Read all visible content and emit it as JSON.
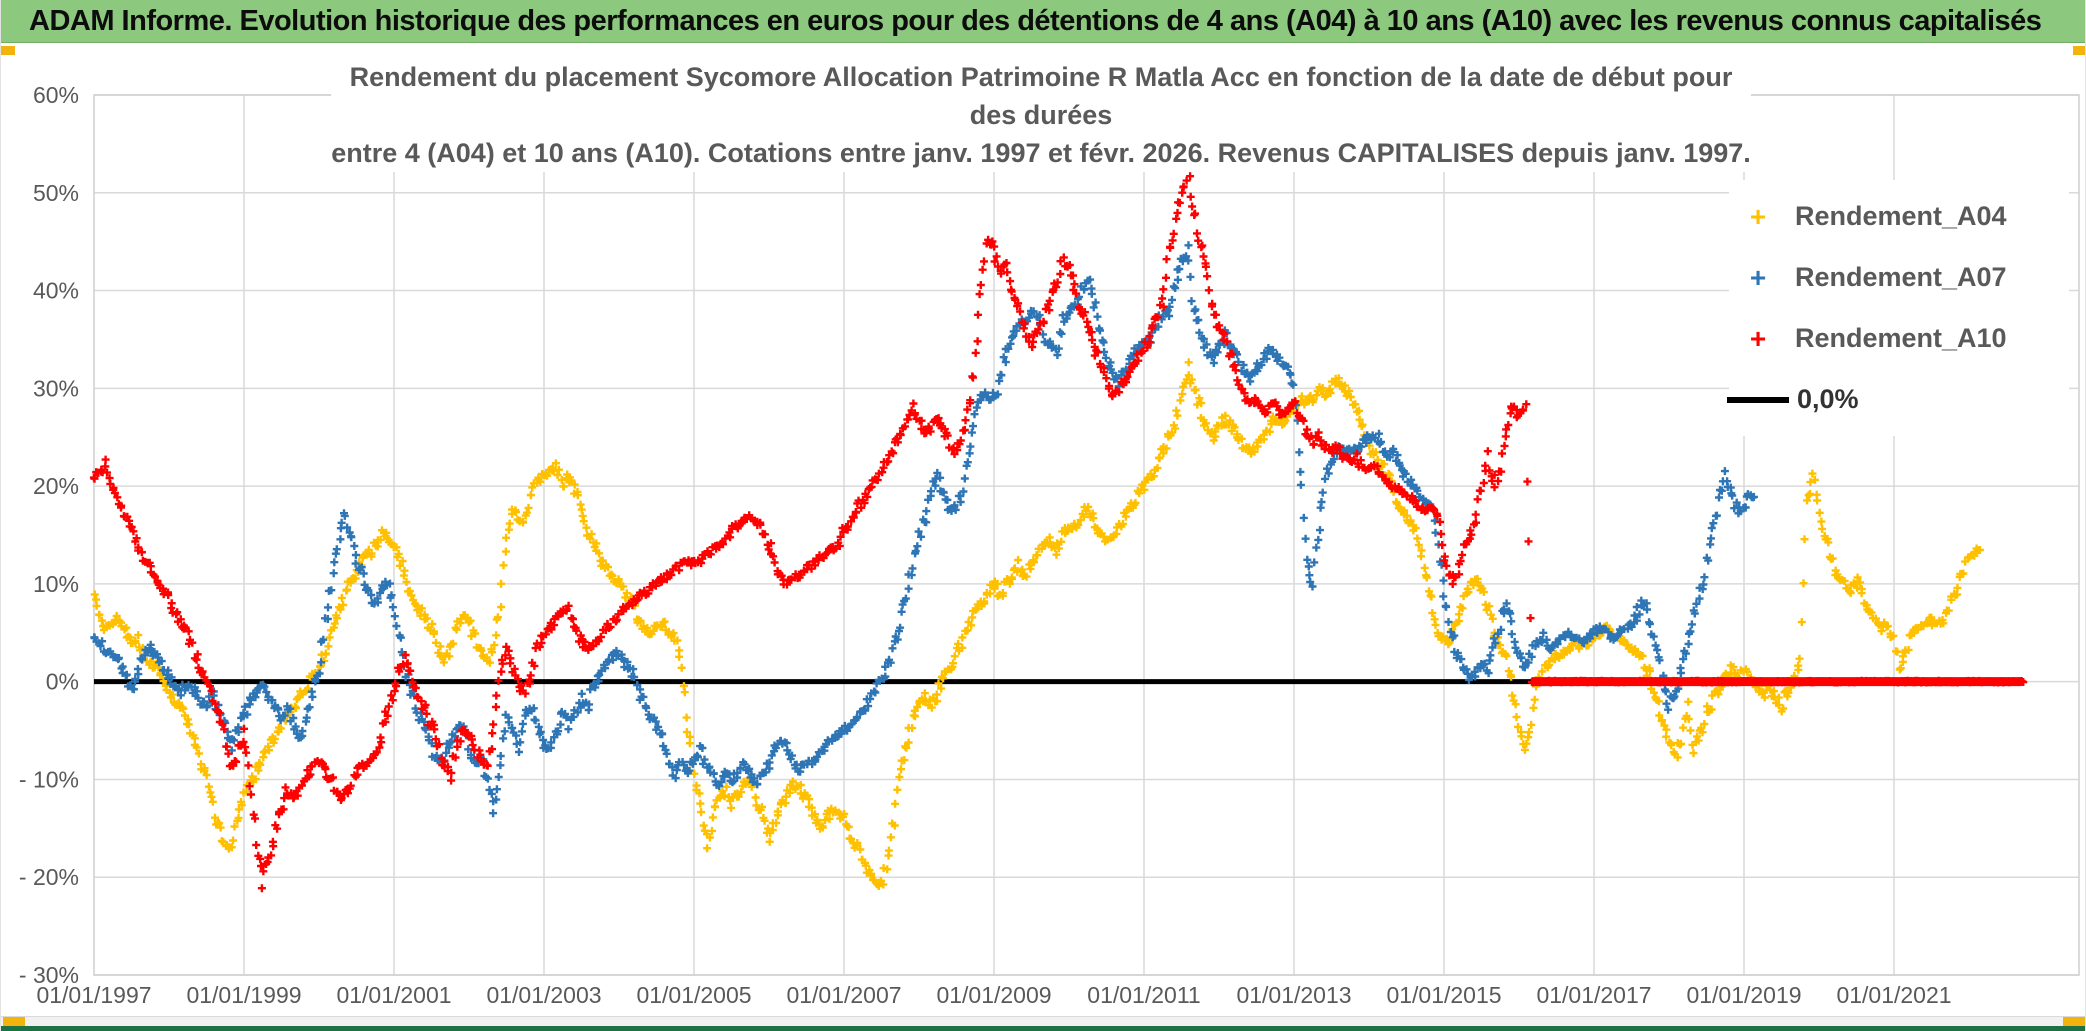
{
  "header": {
    "title": "ADAM Informe. Evolution historique des performances en euros pour des détentions de 4 ans (A04) à 10 ans (A10) avec les revenus connus capitalisés"
  },
  "chart": {
    "subtitle_line1": "Rendement du placement Sycomore Allocation Patrimoine R Matla Acc en fonction de la date de début pour des durées",
    "subtitle_line2": "entre 4 (A04) et 10 ans (A10). Cotations entre janv. 1997 et févr. 2026. Revenus CAPITALISES depuis janv. 1997.",
    "legend": [
      {
        "label": "Rendement_A04",
        "marker": "plus",
        "color": "#FFC000"
      },
      {
        "label": "Rendement_A07",
        "marker": "plus",
        "color": "#2E75B6"
      },
      {
        "label": "Rendement_A10",
        "marker": "plus",
        "color": "#FF0000"
      },
      {
        "label": "0,0%",
        "marker": "line",
        "color": "#000000"
      }
    ],
    "colors": {
      "accent_gold": "#F2B40C",
      "header_green": "#8CC87D",
      "footer_green": "#1E7145",
      "grid": "#D9D9D9",
      "axis_text": "#595959",
      "zero_line": "#000000"
    }
  },
  "chart_data": {
    "type": "scatter",
    "title": "Rendement du placement Sycomore Allocation Patrimoine R Matla Acc en fonction de la date de début pour des durées entre 4 (A04) et 10 ans (A10). Cotations entre janv. 1997 et févr. 2026. Revenus CAPITALISES depuis janv. 1997.",
    "xlabel": "",
    "ylabel": "",
    "grid": true,
    "legend_position": "right-top",
    "x_axis": {
      "ticks": [
        "01/01/1997",
        "01/01/1999",
        "01/01/2001",
        "01/01/2003",
        "01/01/2005",
        "01/01/2007",
        "01/01/2009",
        "01/01/2011",
        "01/01/2013",
        "01/01/2015",
        "01/01/2017",
        "01/01/2019",
        "01/01/2021"
      ],
      "start_year": 1997.0,
      "end_year": 2023.5
    },
    "y_axis": {
      "ticks": [
        "60%",
        "50%",
        "40%",
        "30%",
        "20%",
        "10%",
        "0%",
        "- 10%",
        "- 20%",
        "- 30%"
      ],
      "min": -30,
      "max": 60,
      "unit": "%"
    },
    "zero_line": {
      "label": "0,0%",
      "value": 0,
      "x_start_year": 1997.0,
      "x_end_year": 2022.7
    },
    "series": [
      {
        "name": "Rendement_A04",
        "color": "#FFC000",
        "start": "1997-01",
        "step_months": 1,
        "values": [
          8.5,
          7,
          5.5,
          6,
          6.5,
          5,
          4,
          4.5,
          3,
          2,
          1.5,
          0.5,
          -1,
          -2,
          -3,
          -4.5,
          -6,
          -8,
          -10,
          -13,
          -15,
          -16.5,
          -17,
          -14,
          -12,
          -10.5,
          -9,
          -7.5,
          -6.5,
          -5.5,
          -4.5,
          -3.5,
          -2.5,
          -1.5,
          -0.5,
          0.5,
          1.5,
          3,
          5,
          7,
          8.5,
          10,
          11,
          12.5,
          13,
          14,
          15.5,
          14.5,
          13.5,
          12.5,
          10,
          8.5,
          7.5,
          6.5,
          5.5,
          3.5,
          2,
          3.5,
          5.5,
          7,
          6,
          4.5,
          3,
          2,
          4,
          8,
          15,
          18,
          16,
          17,
          19,
          20.5,
          21,
          21.5,
          22,
          20,
          21,
          19.5,
          17.5,
          15.5,
          14,
          12.5,
          11.5,
          10.5,
          10,
          9,
          8,
          6.5,
          5.5,
          5,
          5.5,
          6,
          5,
          4.5,
          2,
          -5,
          -9,
          -13,
          -16.5,
          -14,
          -12,
          -11,
          -12.5,
          -11.5,
          -10.5,
          -10,
          -12,
          -14,
          -16,
          -14,
          -12.5,
          -11.5,
          -10.5,
          -11,
          -12,
          -13.5,
          -15,
          -14.5,
          -13,
          -13.5,
          -14,
          -15.5,
          -17,
          -18.5,
          -19.5,
          -20.5,
          -21,
          -18,
          -14,
          -9,
          -6.5,
          -4,
          -2.5,
          -1.5,
          -2.5,
          -1,
          0.5,
          1.5,
          3,
          4.5,
          5.5,
          7,
          8,
          9,
          10,
          9,
          10,
          11,
          12,
          11,
          12,
          13,
          14,
          14.5,
          13.5,
          15,
          16,
          15.5,
          17,
          18,
          16.5,
          15,
          14.5,
          15,
          16,
          17,
          18,
          19,
          20,
          21,
          22,
          23.5,
          25,
          26.5,
          29,
          32,
          30,
          28,
          26,
          25,
          26,
          27,
          26,
          25,
          24,
          23.5,
          24,
          25,
          26,
          27,
          26.5,
          27,
          28,
          29,
          28.5,
          29,
          30,
          29.5,
          30,
          31,
          30,
          29,
          28,
          26,
          24,
          23,
          22,
          21,
          19,
          18,
          17,
          16,
          14,
          11.5,
          8,
          5,
          4.5,
          4,
          6,
          8,
          9.5,
          10.5,
          10,
          8,
          5,
          3.5,
          2.5,
          -1,
          -4.5,
          -7.5,
          -4,
          0,
          1.5,
          2,
          2.5,
          3,
          3.5,
          4,
          3.5,
          4,
          4.5,
          5,
          5.5,
          5,
          4.5,
          4,
          3.5,
          3,
          2,
          0.5,
          -2,
          -4,
          -6,
          -7.5,
          -6,
          -2.5,
          -7,
          -5.5,
          -3.5,
          -2,
          -0.5,
          0.5,
          1.5,
          0.5,
          1.5,
          0.5,
          -0.5,
          -1.5,
          -0.5,
          -1.5,
          -2.5,
          -1,
          0.5,
          2,
          18,
          21.5,
          17,
          15,
          12.5,
          11,
          10,
          9.5,
          10.5,
          9,
          7.5,
          6.5,
          5.5,
          6,
          4,
          1,
          3.5,
          5,
          5.5,
          6,
          6.5,
          5.5,
          6.5,
          8,
          9.5,
          11,
          12.5,
          13.5
        ]
      },
      {
        "name": "Rendement_A07",
        "color": "#2E75B6",
        "start": "1997-01",
        "step_months": 1,
        "values": [
          4.5,
          4,
          3,
          2.5,
          2,
          0.5,
          -0.5,
          1,
          2.5,
          3.5,
          2.5,
          1.5,
          0.5,
          -0.5,
          -1,
          0,
          -1,
          -2,
          -2.5,
          -1.5,
          -3,
          -4.5,
          -6.5,
          -5,
          -3.5,
          -2,
          -1,
          -0.5,
          -1.5,
          -2.5,
          -3.5,
          -2.5,
          -4.5,
          -6,
          -3.5,
          -1,
          1.5,
          6,
          10,
          14,
          17.5,
          15,
          12.5,
          10.5,
          9,
          8,
          9.5,
          10.5,
          8,
          4.5,
          1,
          -1.5,
          -3.5,
          -5,
          -6.5,
          -8.5,
          -7.5,
          -6,
          -5,
          -4.5,
          -6.5,
          -8.5,
          -8,
          -10.5,
          -13.5,
          -9,
          -3,
          -4.5,
          -6.5,
          -3.5,
          -2.5,
          -5,
          -6.5,
          -7,
          -5,
          -3,
          -4.5,
          -3.5,
          -1.5,
          -2.5,
          -0.5,
          1,
          2,
          2.5,
          3,
          2,
          1,
          -0.5,
          -2,
          -3.5,
          -4.5,
          -5.5,
          -8,
          -9.5,
          -8.5,
          -9,
          -8,
          -7,
          -8.5,
          -9.5,
          -10.5,
          -9.5,
          -10,
          -9.5,
          -8.5,
          -9.5,
          -10.5,
          -9.5,
          -8.5,
          -7,
          -6,
          -7,
          -8.5,
          -9,
          -8.5,
          -8,
          -7.5,
          -6.5,
          -6,
          -5.5,
          -5,
          -4.5,
          -4,
          -3,
          -2,
          -1,
          0.5,
          1.5,
          3.5,
          6,
          8.5,
          12,
          15,
          17,
          19.5,
          21,
          19,
          17.5,
          18,
          20,
          24,
          27,
          29.5,
          29,
          29,
          31,
          34,
          35.5,
          36.5,
          37,
          38,
          37.5,
          35,
          34.5,
          34,
          37,
          38,
          38.5,
          40,
          41,
          39,
          36,
          33,
          31.5,
          30.5,
          32,
          33.5,
          34,
          34.5,
          35,
          36.5,
          37.5,
          38,
          40.5,
          43,
          44,
          38,
          36,
          34,
          33,
          34,
          35.5,
          34,
          33,
          31.5,
          31,
          32,
          33,
          34,
          33.5,
          32.5,
          32,
          30,
          22,
          12,
          10,
          16,
          21,
          23,
          24,
          23.5,
          24,
          23,
          24.5,
          25,
          25.5,
          24,
          23,
          23.5,
          22,
          21,
          20,
          19,
          18.5,
          18,
          14,
          9,
          5,
          3,
          1.5,
          0.5,
          1,
          2,
          1,
          4,
          6,
          8.5,
          5,
          3,
          1.5,
          3,
          4,
          4.5,
          3.5,
          4,
          4.5,
          5,
          4.5,
          4,
          4.5,
          5,
          5.5,
          5,
          4.5,
          5,
          5.5,
          6,
          7,
          8.5,
          6,
          3,
          0,
          -2.5,
          -1,
          1,
          4,
          7,
          9,
          12,
          15,
          18.5,
          21,
          19,
          17.5,
          18,
          19
        ]
      },
      {
        "name": "Rendement_A10",
        "color": "#FF0000",
        "start": "1997-01",
        "step_months": 1,
        "flat_zero_from": "2016-03",
        "values": [
          21,
          21.5,
          22,
          19.5,
          18.5,
          17,
          15.5,
          14,
          12.5,
          11.5,
          10,
          9.5,
          8.5,
          7,
          6,
          4.5,
          3,
          1.5,
          0,
          -1.5,
          -3,
          -6,
          -9,
          -7,
          -5,
          -10,
          -16,
          -20.5,
          -18,
          -15,
          -13,
          -11,
          -12,
          -11,
          -9.5,
          -8.5,
          -8,
          -9,
          -10,
          -11.5,
          -12,
          -10.5,
          -9.5,
          -8.5,
          -8,
          -7.5,
          -5.5,
          -3,
          -1,
          1.5,
          2.5,
          0.5,
          -1.5,
          -3,
          -4.5,
          -6,
          -8.5,
          -9.5,
          -6.5,
          -5,
          -5.5,
          -7,
          -8,
          -9,
          -4,
          1.5,
          3.5,
          1.5,
          -0.5,
          -1,
          1,
          3.5,
          5,
          5.5,
          6.5,
          7,
          7.5,
          5.5,
          4,
          3.5,
          4,
          4.5,
          5.5,
          6,
          6.5,
          7.5,
          8,
          8.5,
          9,
          9.5,
          10,
          10.5,
          11,
          11.5,
          12,
          12.5,
          12,
          12.5,
          13,
          13.5,
          14,
          14.5,
          15.5,
          16,
          16.5,
          17,
          16.5,
          15.5,
          14,
          12,
          10.5,
          10,
          10.5,
          11,
          11.5,
          12,
          12.5,
          13,
          13.5,
          14,
          15.5,
          16.5,
          17.5,
          18.5,
          19.5,
          20.5,
          21.5,
          22.5,
          24,
          25.5,
          27,
          28,
          27,
          25.5,
          26,
          27,
          26,
          24,
          23.5,
          25,
          28,
          33,
          41,
          45.5,
          44,
          42,
          43,
          40,
          38,
          36,
          34.5,
          36,
          37,
          39,
          41,
          43,
          42,
          40,
          38,
          36.5,
          34,
          33,
          31,
          29.5,
          30,
          31,
          32,
          33,
          34,
          35,
          37,
          39,
          44,
          47,
          50,
          52.5,
          48,
          45,
          42,
          38,
          36,
          35,
          33,
          31,
          29.5,
          28.5,
          29,
          27.5,
          28,
          28.5,
          27.5,
          28,
          28.5,
          27,
          25.5,
          24.5,
          25,
          24,
          23.5,
          24,
          23,
          22.5,
          23,
          22,
          21.5,
          22,
          21,
          20.5,
          20,
          19.5,
          19,
          18.5,
          18,
          17.5,
          18,
          17,
          13,
          11,
          10,
          13,
          15,
          16,
          20,
          23,
          20,
          22,
          26,
          28,
          27,
          28,
          0,
          0,
          0,
          0,
          0,
          0,
          0,
          0,
          0,
          0,
          0,
          0,
          0,
          0,
          0,
          0,
          0,
          0,
          0,
          0,
          0,
          0,
          0,
          0,
          0,
          0,
          0,
          0,
          0,
          0,
          0,
          0,
          0,
          0,
          0,
          0,
          0,
          0,
          0,
          0,
          0,
          0,
          0,
          0,
          0,
          0,
          0,
          0,
          0,
          0,
          0,
          0,
          0,
          0,
          0,
          0,
          0,
          0,
          0,
          0,
          0,
          0,
          0,
          0,
          0,
          0,
          0,
          0,
          0,
          0,
          0,
          0,
          0,
          0,
          0,
          0,
          0,
          0,
          0
        ]
      }
    ]
  }
}
